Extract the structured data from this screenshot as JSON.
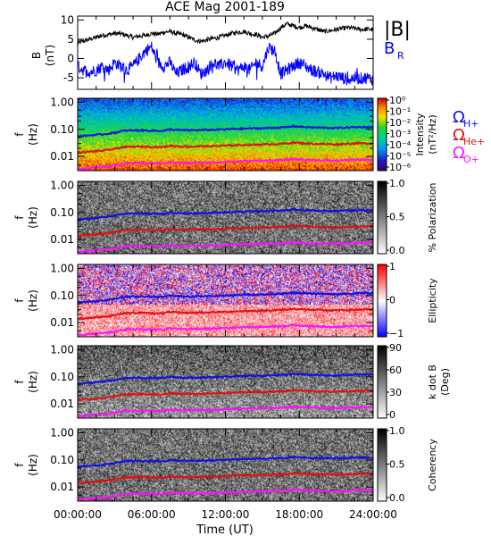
{
  "chart_data": [
    {
      "type": "line",
      "title": "ACE Mag 2001-189",
      "ylabel": "B",
      "yunit": "(nT)",
      "yticks": [
        "10",
        "5",
        "0",
        "-5"
      ],
      "ylim": [
        -8,
        11
      ],
      "xlim": [
        0,
        24
      ],
      "series": [
        {
          "name": "|B|",
          "color": "#000000",
          "x": [
            0,
            0.5,
            1,
            1.5,
            2,
            2.5,
            3,
            3.5,
            4,
            4.5,
            5,
            5.5,
            6,
            6.5,
            7,
            7.5,
            8,
            8.5,
            9,
            9.5,
            10,
            10.5,
            11,
            11.5,
            12,
            12.5,
            13,
            13.5,
            14,
            14.5,
            15,
            15.5,
            16,
            16.5,
            17,
            17.5,
            18,
            18.5,
            19,
            19.5,
            20,
            20.5,
            21,
            21.5,
            22,
            22.5,
            23,
            23.5,
            24
          ],
          "y": [
            4,
            4.5,
            5,
            5.5,
            6,
            6.2,
            6.5,
            6.4,
            6,
            5.5,
            5.8,
            6,
            6.5,
            6.3,
            6.8,
            7,
            6.5,
            6.2,
            5.5,
            4.8,
            4.5,
            4.8,
            5.2,
            5.5,
            6,
            6.5,
            6.8,
            7,
            6.5,
            6.2,
            5.5,
            5.8,
            6.5,
            8,
            9,
            8.5,
            8,
            8.5,
            8,
            7.5,
            7,
            7.2,
            7.5,
            7.8,
            8,
            7.8,
            7.5,
            7.6,
            7.5
          ]
        },
        {
          "name": "B_R",
          "color": "#0000ff",
          "x": [
            0,
            0.5,
            1,
            1.5,
            2,
            2.5,
            3,
            3.5,
            4,
            4.5,
            5,
            5.5,
            6,
            6.5,
            7,
            7.5,
            8,
            8.5,
            9,
            9.5,
            10,
            10.5,
            11,
            11.5,
            12,
            12.5,
            13,
            13.5,
            14,
            14.5,
            15,
            15.5,
            16,
            16.5,
            17,
            17.5,
            18,
            18.5,
            19,
            19.5,
            20,
            20.5,
            21,
            21.5,
            22,
            22.5,
            23,
            23.5,
            24
          ],
          "y": [
            -2,
            -3,
            -3.5,
            -3,
            -2,
            -3,
            -1,
            -2,
            -3,
            -2,
            0,
            2,
            3,
            -1,
            -2,
            -1,
            -4,
            -3,
            -2,
            -1,
            -4,
            -3,
            -1,
            -2,
            -1,
            -2,
            -3,
            -2,
            -3,
            -1,
            -2,
            3,
            2,
            -4,
            -3,
            -2,
            -1,
            -2,
            -3,
            -3.5,
            -4,
            -5,
            -4.5,
            -5,
            -5.5,
            -5,
            -5.2,
            -5,
            -5.5
          ]
        }
      ]
    },
    {
      "type": "heatmap",
      "ylabel": "f",
      "yunit": "(Hz)",
      "yscale": "log",
      "ylim": [
        0.003,
        1.4
      ],
      "yticks": [
        "1.00",
        "0.10",
        "0.01"
      ],
      "colorbar_label": "Intensity",
      "colorbar_unit": "(nT²/Hz)",
      "colorbar_ticks": [
        "10⁰",
        "10⁻¹",
        "10⁻²",
        "10⁻³",
        "10⁻⁴",
        "10⁻⁵",
        "10⁻⁶"
      ],
      "colormap": "rainbow",
      "overlays": [
        {
          "name": "ΩH+",
          "color": "#1010e0"
        },
        {
          "name": "ΩHe+",
          "color": "#e01010"
        },
        {
          "name": "ΩO+",
          "color": "#ff10ff"
        }
      ]
    },
    {
      "type": "heatmap",
      "ylabel": "f",
      "yunit": "(Hz)",
      "yscale": "log",
      "yticks": [
        "1.00",
        "0.10",
        "0.01"
      ],
      "colorbar_label": "% Polarization",
      "colorbar_ticks": [
        "1.0",
        "0.5",
        "0.0"
      ],
      "colormap": "gray"
    },
    {
      "type": "heatmap",
      "ylabel": "f",
      "yunit": "(Hz)",
      "yscale": "log",
      "yticks": [
        "1.00",
        "0.10",
        "0.01"
      ],
      "colorbar_label": "Ellipticity",
      "colorbar_ticks": [
        "1",
        "0",
        "−1"
      ],
      "colormap": "blue-white-red"
    },
    {
      "type": "heatmap",
      "ylabel": "f",
      "yunit": "(Hz)",
      "yscale": "log",
      "yticks": [
        "1.00",
        "0.10",
        "0.01"
      ],
      "colorbar_label": "k dot B",
      "colorbar_unit": "(Deg)",
      "colorbar_ticks": [
        "90",
        "60",
        "30",
        "0"
      ],
      "colormap": "gray"
    },
    {
      "type": "heatmap",
      "ylabel": "f",
      "yunit": "(Hz)",
      "yscale": "log",
      "yticks": [
        "1.00",
        "0.10",
        "0.01"
      ],
      "colorbar_label": "Coherency",
      "colorbar_ticks": [
        "1.0",
        "0.5",
        "0.0"
      ],
      "colormap": "gray"
    }
  ],
  "cyclotron": {
    "x": [
      0,
      1,
      2,
      3,
      3.5,
      4,
      5,
      6,
      7,
      7.5,
      8,
      9,
      10,
      11,
      12,
      13,
      14,
      15,
      16,
      17,
      17.5,
      18,
      19,
      20,
      21,
      22,
      23,
      24
    ],
    "h": [
      0.055,
      0.06,
      0.065,
      0.075,
      0.085,
      0.09,
      0.092,
      0.09,
      0.088,
      0.1,
      0.095,
      0.092,
      0.094,
      0.096,
      0.1,
      0.105,
      0.108,
      0.11,
      0.115,
      0.12,
      0.13,
      0.125,
      0.118,
      0.115,
      0.112,
      0.118,
      0.122,
      0.12
    ],
    "he": [
      0.0138,
      0.015,
      0.0163,
      0.0188,
      0.0213,
      0.0225,
      0.023,
      0.0225,
      0.022,
      0.025,
      0.0238,
      0.023,
      0.0235,
      0.024,
      0.025,
      0.0263,
      0.027,
      0.0275,
      0.0288,
      0.03,
      0.0325,
      0.0313,
      0.0295,
      0.0288,
      0.028,
      0.0295,
      0.0305,
      0.03
    ],
    "o": [
      0.0034,
      0.0038,
      0.0041,
      0.0047,
      0.0053,
      0.0056,
      0.0058,
      0.0056,
      0.0055,
      0.0063,
      0.0059,
      0.0058,
      0.0059,
      0.006,
      0.0063,
      0.0066,
      0.0068,
      0.0069,
      0.0072,
      0.0075,
      0.0081,
      0.0078,
      0.0074,
      0.0072,
      0.007,
      0.0074,
      0.0076,
      0.0075
    ]
  },
  "xaxis": {
    "label": "Time (UT)",
    "ticks": [
      "00:00:00",
      "06:00:00",
      "12:00:00",
      "18:00:00",
      "24:00:00"
    ]
  }
}
